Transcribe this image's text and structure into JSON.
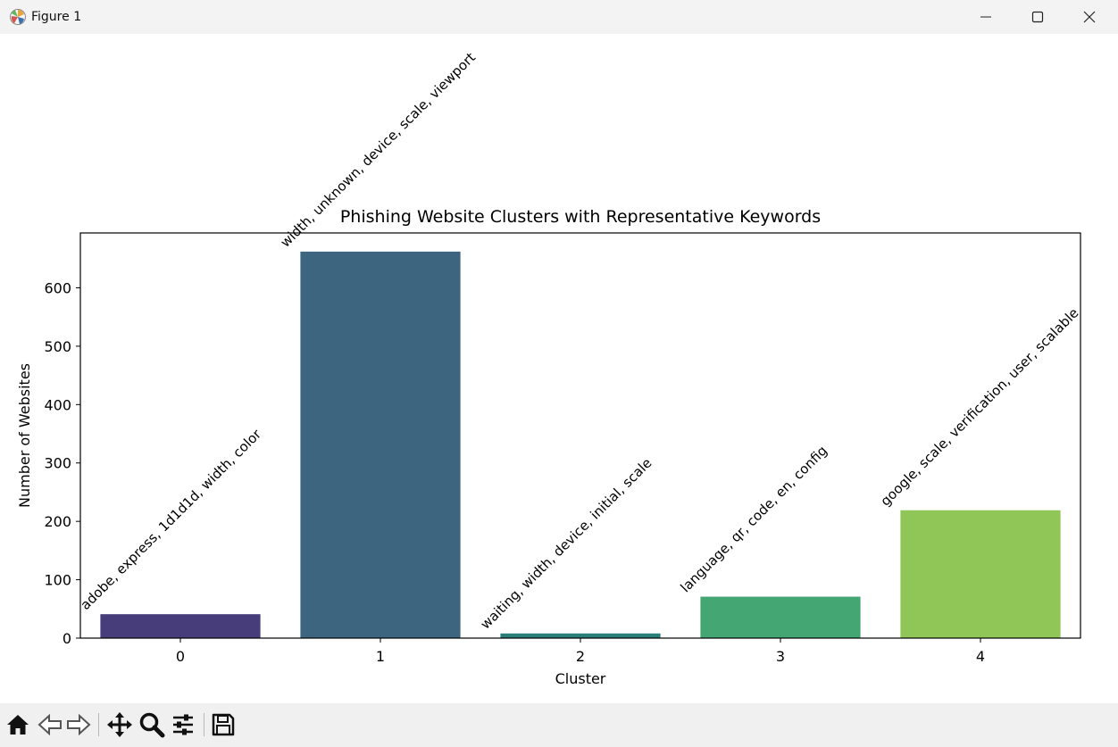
{
  "window": {
    "title": "Figure 1",
    "icons": [
      "matplotlib-icon",
      "minimize-icon",
      "maximize-icon",
      "close-icon"
    ]
  },
  "toolbar": {
    "icons": [
      "home-icon",
      "back-icon",
      "forward-icon",
      "pan-icon",
      "zoom-icon",
      "configure-subplots-icon",
      "save-icon"
    ]
  },
  "chart_data": {
    "type": "bar",
    "title": "Phishing Website Clusters with Representative Keywords",
    "xlabel": "Cluster",
    "ylabel": "Number of Websites",
    "categories": [
      "0",
      "1",
      "2",
      "3",
      "4"
    ],
    "values": [
      41,
      662,
      8,
      71,
      219
    ],
    "annotations": [
      "adobe, express, 1d1d1d, width, color",
      "width, unknown, device, scale, viewport",
      "waiting, width, device, initial, scale",
      "language, qr, code, en, config",
      "google, scale, verification, user, scalable"
    ],
    "colors": [
      "#483d7b",
      "#3d6580",
      "#2a7e7a",
      "#44a673",
      "#8fc657"
    ],
    "ylim": [
      0,
      694
    ],
    "yticks": [
      0,
      100,
      200,
      300,
      400,
      500,
      600
    ],
    "grid": false,
    "legend": "none"
  }
}
